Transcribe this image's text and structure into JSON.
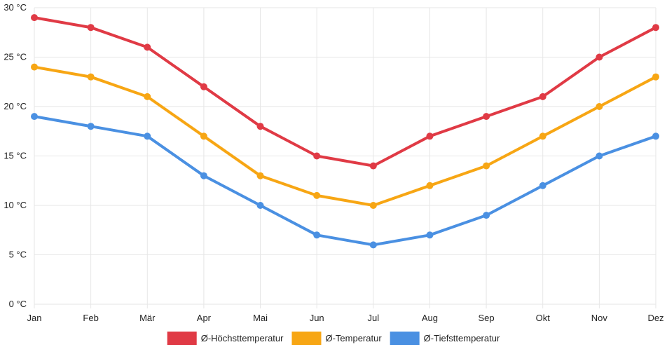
{
  "chart_data": {
    "type": "line",
    "categories": [
      "Jan",
      "Feb",
      "Mär",
      "Apr",
      "Mai",
      "Jun",
      "Jul",
      "Aug",
      "Sep",
      "Okt",
      "Nov",
      "Dez"
    ],
    "y_ticks": [
      "0 °C",
      "5 °C",
      "10 °C",
      "15 °C",
      "20 °C",
      "25 °C",
      "30 °C"
    ],
    "y_tick_values": [
      0,
      5,
      10,
      15,
      20,
      25,
      30
    ],
    "ylim": [
      0,
      30
    ],
    "grid": true,
    "legend_position": "bottom",
    "series": [
      {
        "name": "Ø-Höchsttemperatur",
        "color": "#e03a45",
        "values": [
          29,
          28,
          26,
          22,
          18,
          15,
          14,
          17,
          19,
          21,
          25,
          28
        ]
      },
      {
        "name": "Ø-Temperatur",
        "color": "#f7a614",
        "values": [
          24,
          23,
          21,
          17,
          13,
          11,
          10,
          12,
          14,
          17,
          20,
          23
        ]
      },
      {
        "name": "Ø-Tiefsttemperatur",
        "color": "#4a90e2",
        "values": [
          19,
          18,
          17,
          13,
          10,
          7,
          6,
          7,
          9,
          12,
          15,
          17
        ]
      }
    ]
  }
}
